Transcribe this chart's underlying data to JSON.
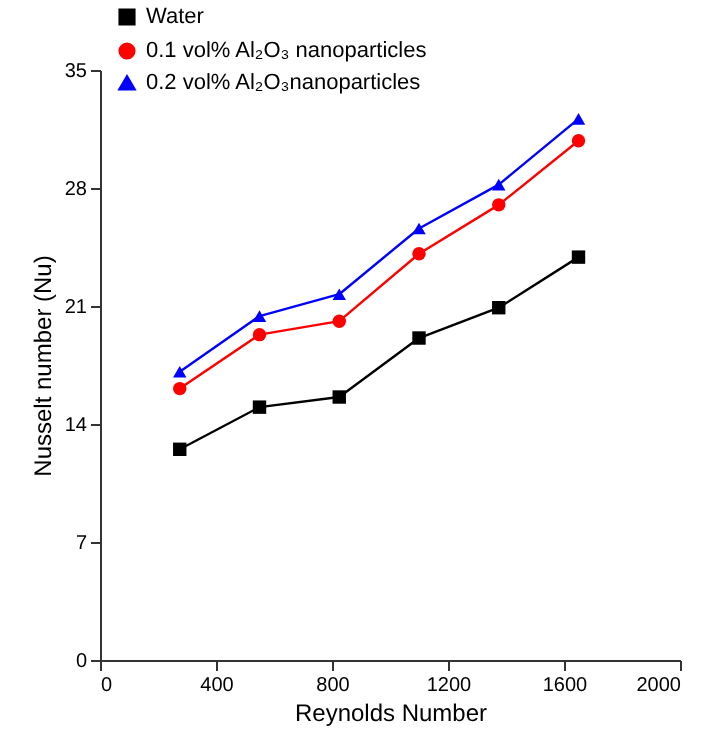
{
  "chart_data": {
    "type": "line",
    "xlabel": "Reynolds Number",
    "ylabel": "Nusselt number (Nu)",
    "x": [
      275,
      550,
      825,
      1100,
      1375,
      1650
    ],
    "series": [
      {
        "name": "Water",
        "color": "#000000",
        "marker": "square",
        "values": [
          12.5,
          15.0,
          15.6,
          19.1,
          20.9,
          23.9
        ]
      },
      {
        "name": "0.1 vol% Al₂O₃ nanoparticles",
        "color": "#ff0000",
        "marker": "circle",
        "values": [
          16.1,
          19.3,
          20.1,
          24.1,
          27.0,
          30.8
        ]
      },
      {
        "name": "0.2 vol% Al₂O₃nanoparticles",
        "color": "#0000ff",
        "marker": "triangle",
        "values": [
          17.1,
          20.4,
          21.7,
          25.6,
          28.2,
          32.1
        ]
      }
    ],
    "xlim": [
      0,
      2000
    ],
    "xticks": [
      0,
      400,
      800,
      1200,
      1600,
      2000
    ],
    "ylim": [
      0,
      35
    ],
    "yticks": [
      0,
      7,
      14,
      21,
      28,
      35
    ],
    "grid": false,
    "legend": "top left",
    "line_style": "solid"
  }
}
